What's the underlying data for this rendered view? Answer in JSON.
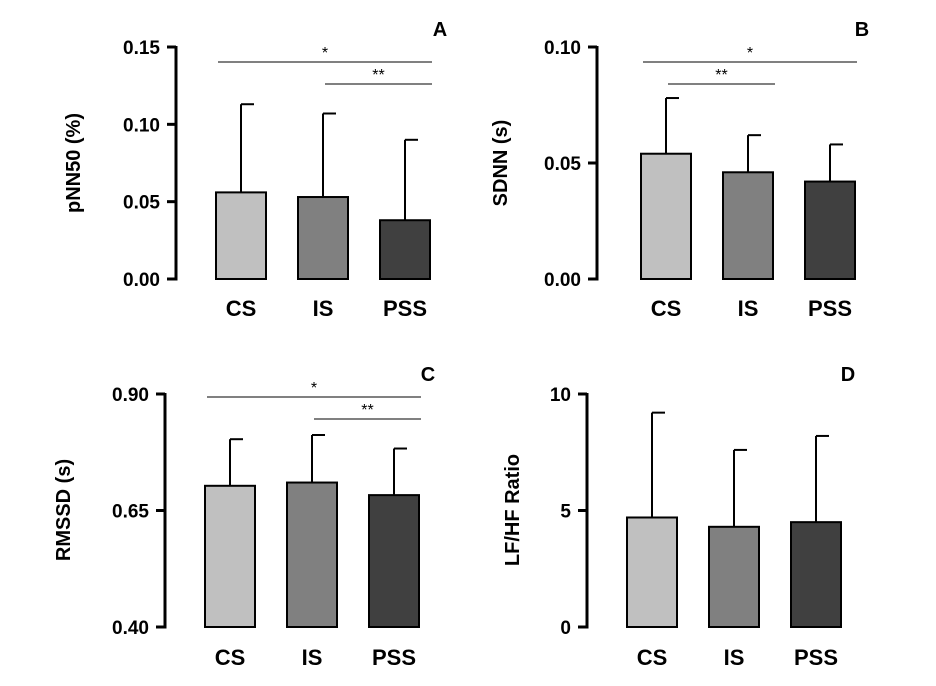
{
  "chart_data": [
    {
      "type": "bar",
      "panel_label": "A",
      "ylabel": "pNN50 (%)",
      "categories": [
        "CS",
        "IS",
        "PSS"
      ],
      "values": [
        0.056,
        0.053,
        0.038
      ],
      "errors": [
        0.057,
        0.054,
        0.052
      ],
      "ylim": [
        0,
        0.15
      ],
      "yticks": [
        0.0,
        0.05,
        0.1,
        0.15
      ],
      "ytick_labels": [
        "0.00",
        "0.05",
        "0.10",
        "0.15"
      ],
      "colors": [
        "#c0c0c0",
        "#808080",
        "#404040"
      ],
      "significance": [
        {
          "from": "CS",
          "to": "PSS",
          "label": "*",
          "level": 0
        },
        {
          "from": "IS",
          "to": "PSS",
          "label": "**",
          "level": 1
        }
      ]
    },
    {
      "type": "bar",
      "panel_label": "B",
      "ylabel": "SDNN (s)",
      "categories": [
        "CS",
        "IS",
        "PSS"
      ],
      "values": [
        0.054,
        0.046,
        0.042
      ],
      "errors": [
        0.024,
        0.016,
        0.016
      ],
      "ylim": [
        0,
        0.1
      ],
      "yticks": [
        0.0,
        0.05,
        0.1
      ],
      "ytick_labels": [
        "0.00",
        "0.05",
        "0.10"
      ],
      "colors": [
        "#c0c0c0",
        "#808080",
        "#404040"
      ],
      "significance": [
        {
          "from": "CS",
          "to": "PSS",
          "label": "*",
          "level": 0
        },
        {
          "from": "CS",
          "to": "IS",
          "label": "**",
          "level": 1
        }
      ]
    },
    {
      "type": "bar",
      "panel_label": "C",
      "ylabel": "RMSSD (s)",
      "categories": [
        "CS",
        "IS",
        "PSS"
      ],
      "values": [
        0.703,
        0.71,
        0.683
      ],
      "errors": [
        0.1,
        0.102,
        0.1
      ],
      "ylim": [
        0.4,
        0.9
      ],
      "yticks": [
        0.4,
        0.65,
        0.9
      ],
      "ytick_labels": [
        "0.40",
        "0.65",
        "0.90"
      ],
      "colors": [
        "#c0c0c0",
        "#808080",
        "#404040"
      ],
      "significance": [
        {
          "from": "CS",
          "to": "PSS",
          "label": "*",
          "level": 0
        },
        {
          "from": "IS",
          "to": "PSS",
          "label": "**",
          "level": 1
        }
      ]
    },
    {
      "type": "bar",
      "panel_label": "D",
      "ylabel": "LF/HF Ratio",
      "categories": [
        "CS",
        "IS",
        "PSS"
      ],
      "values": [
        4.7,
        4.3,
        4.5
      ],
      "errors": [
        4.5,
        3.3,
        3.7
      ],
      "ylim": [
        0,
        10
      ],
      "yticks": [
        0,
        5,
        10
      ],
      "ytick_labels": [
        "0",
        "5",
        "10"
      ],
      "colors": [
        "#c0c0c0",
        "#808080",
        "#404040"
      ],
      "significance": []
    }
  ]
}
